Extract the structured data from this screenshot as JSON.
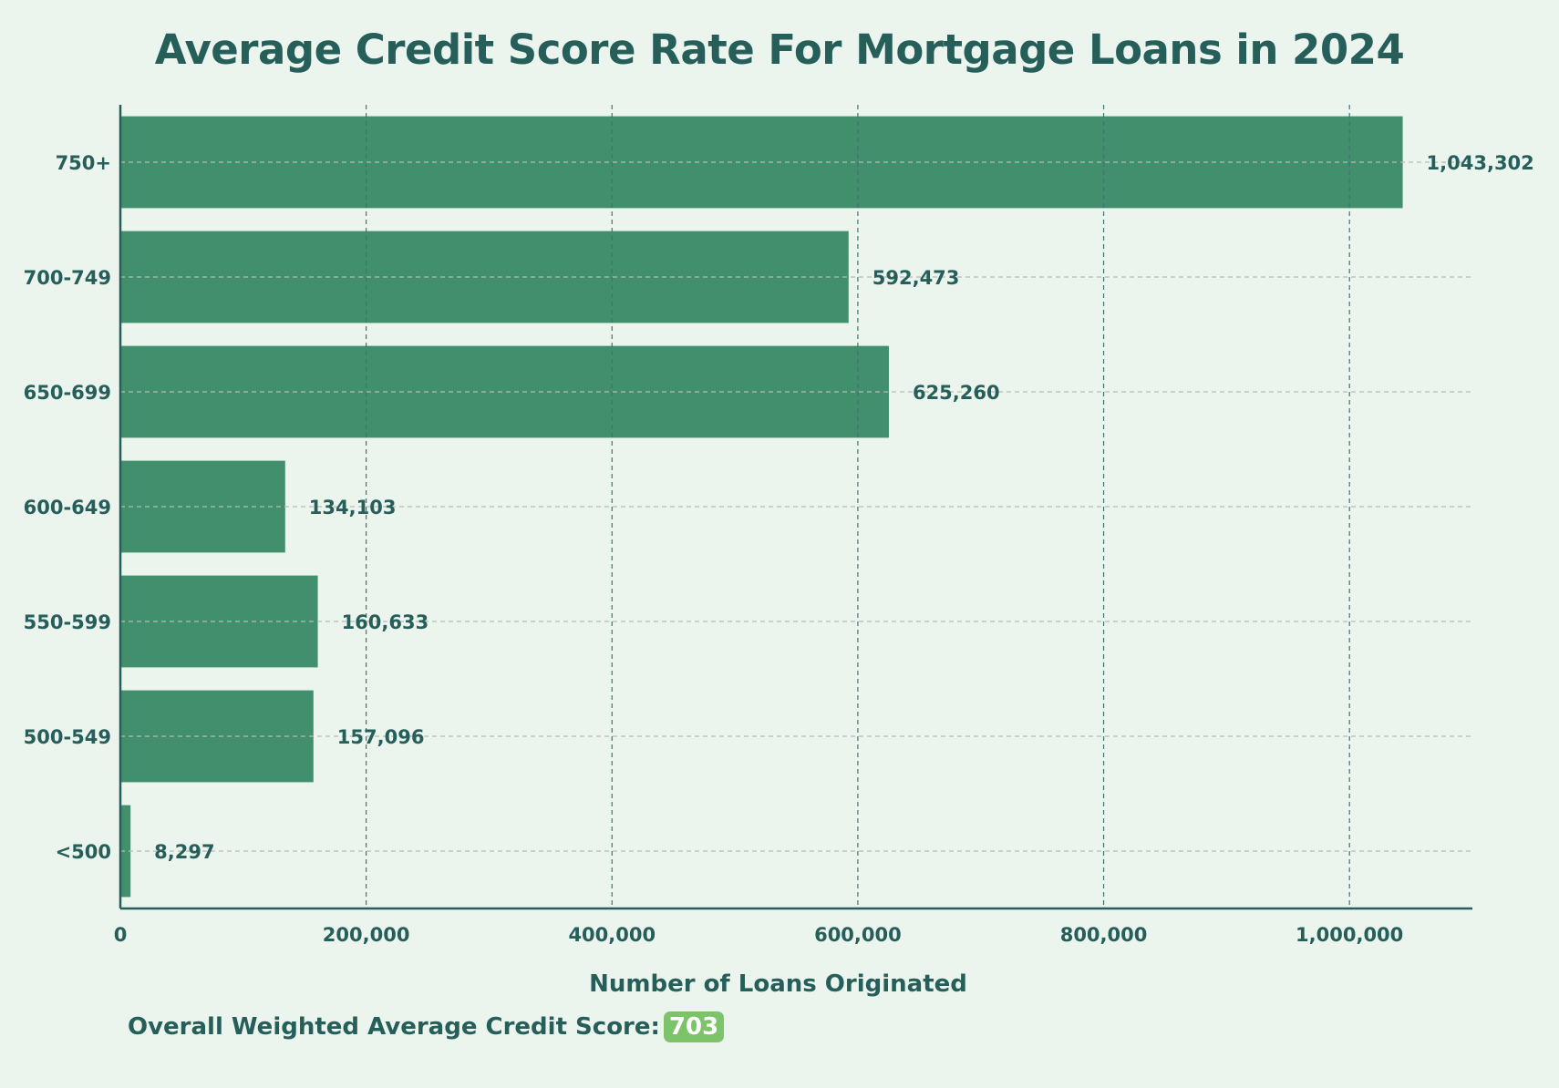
{
  "chart_data": {
    "type": "bar",
    "orientation": "horizontal",
    "title": "Average Credit Score Rate For Mortgage Loans in 2024",
    "xlabel": "Number of Loans Originated",
    "ylabel": "",
    "categories": [
      "750+",
      "700-749",
      "650-699",
      "600-649",
      "550-599",
      "500-549",
      "<500"
    ],
    "values": [
      1043302,
      592473,
      625260,
      134103,
      160633,
      157096,
      8297
    ],
    "value_labels": [
      "1,043,302",
      "592,473",
      "625,260",
      "134,103",
      "160,633",
      "157,096",
      "8,297"
    ],
    "xlim": [
      0,
      1100000
    ],
    "x_ticks": [
      0,
      200000,
      400000,
      600000,
      800000,
      1000000
    ],
    "x_tick_labels": [
      "0",
      "200,000",
      "400,000",
      "600,000",
      "800,000",
      "1,000,000"
    ],
    "grid": true,
    "legend": "none"
  },
  "colors": {
    "bar": "#418f6c",
    "text": "#265e5a",
    "background": "#ecf4ee",
    "grid_vertical": "#3f7470",
    "grid_horizontal": "#b5bcb7",
    "badge": "#7cc36a"
  },
  "footer": {
    "label": "Overall Weighted Average Credit Score:",
    "score": "703"
  }
}
